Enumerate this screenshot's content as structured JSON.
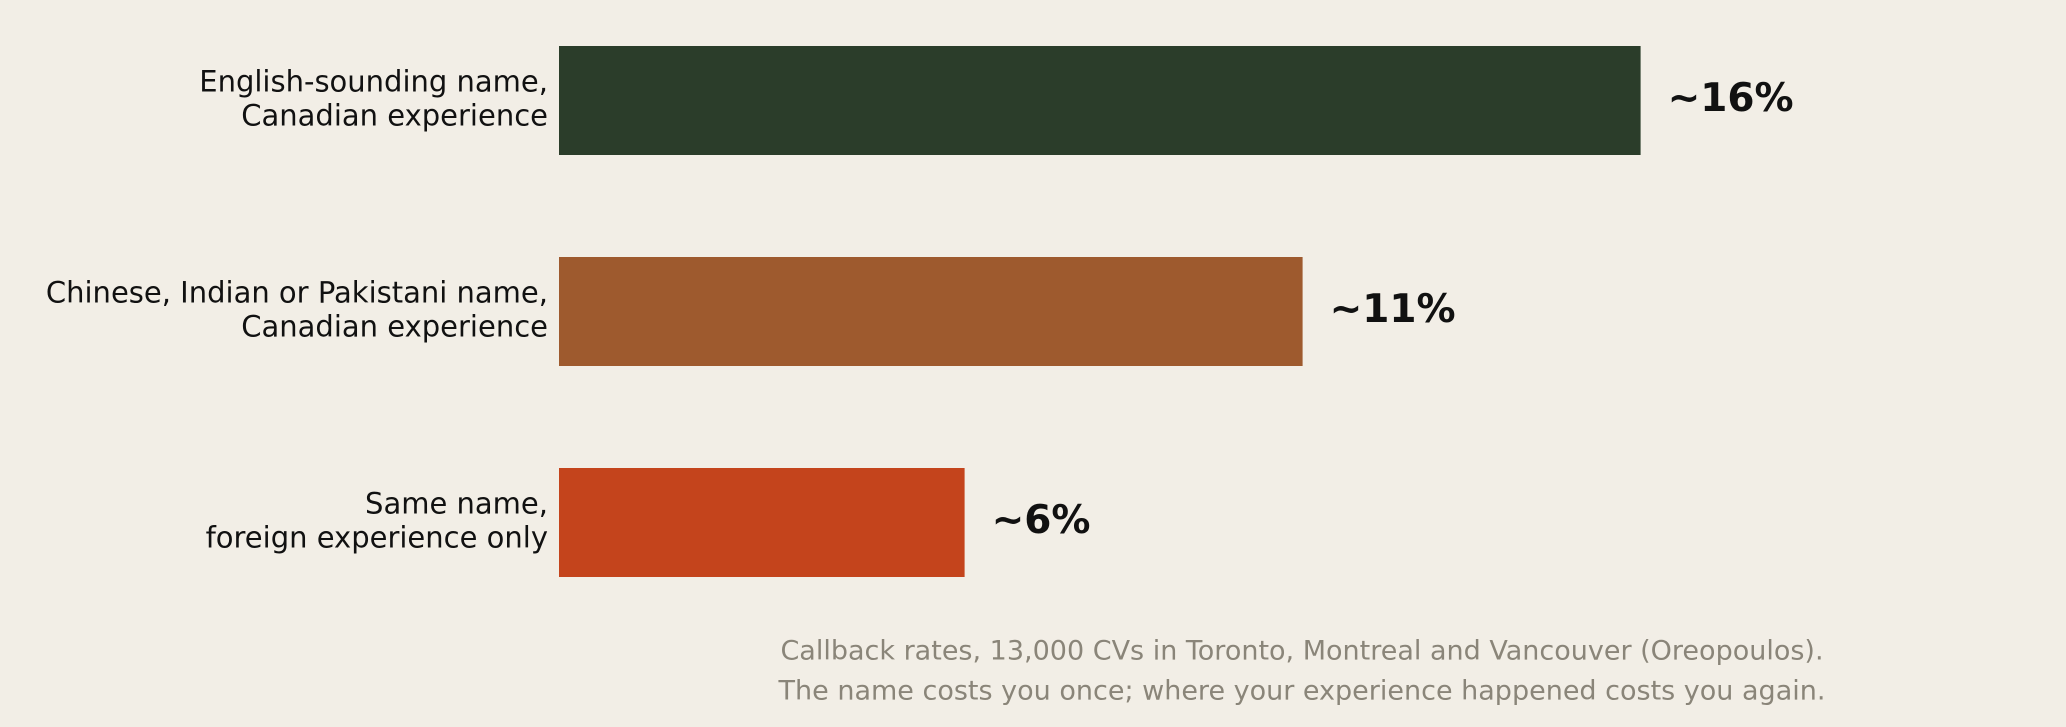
{
  "chart_data": {
    "type": "barh",
    "categories": [
      "English-sounding name,\nCanadian experience",
      "Chinese, Indian or Pakistani name,\nCanadian experience",
      "Same name,\nforeign experience only"
    ],
    "values": [
      16,
      11,
      6
    ],
    "value_labels": [
      "~16%",
      "~11%",
      "~6%"
    ],
    "colors": [
      "#2b3d2a",
      "#9e5a2e",
      "#c4441c"
    ],
    "caption": [
      "Callback rates, 13,000 CVs in Toronto, Montreal and Vancouver (Oreopoulos).",
      "The name costs you once; where your experience happened costs you again."
    ]
  }
}
